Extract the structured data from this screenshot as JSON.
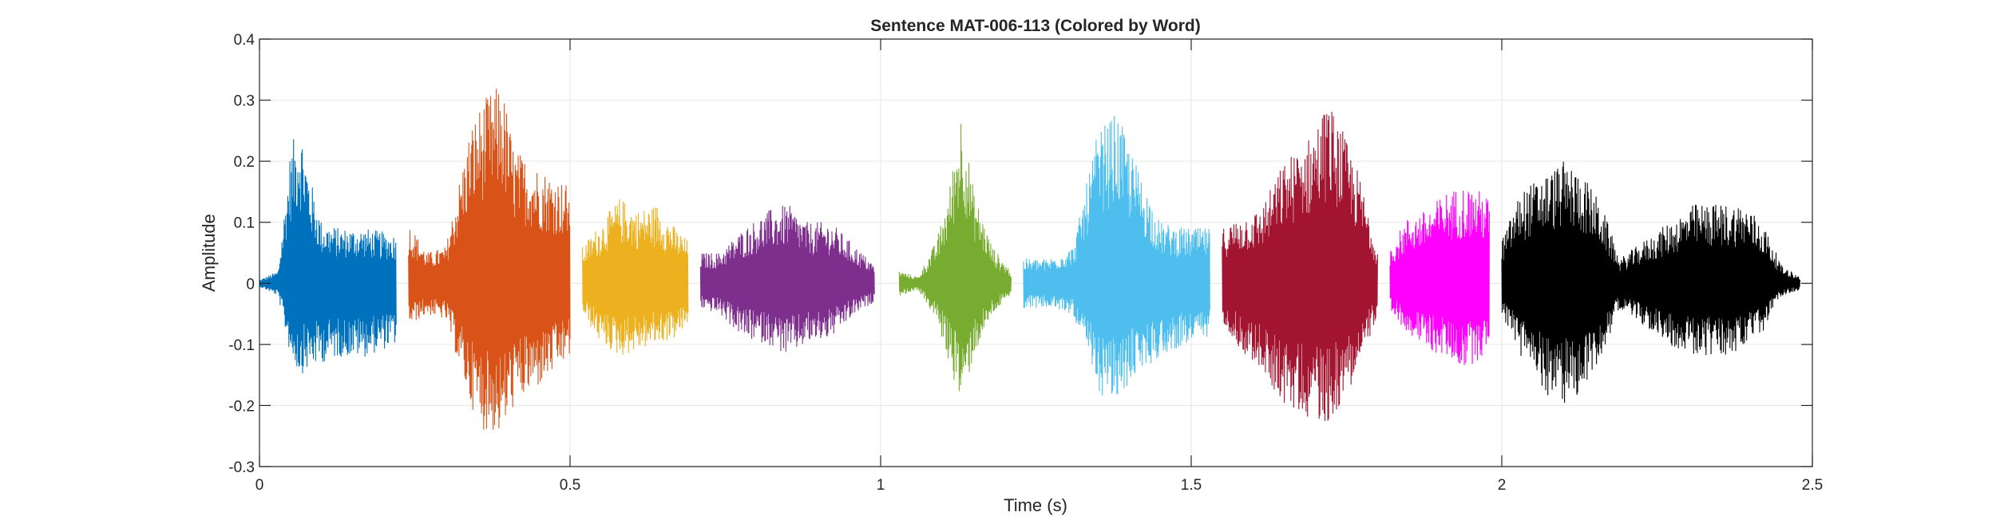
{
  "chart_data": {
    "type": "line",
    "title": "Sentence MAT-006-113 (Colored by Word)",
    "xlabel": "Time (s)",
    "ylabel": "Amplitude",
    "xlim": [
      0,
      2.5
    ],
    "ylim": [
      -0.3,
      0.4
    ],
    "xticks": [
      0,
      0.5,
      1,
      1.5,
      2,
      2.5
    ],
    "xtick_labels": [
      "0",
      "0.5",
      "1",
      "1.5",
      "2",
      "2.5"
    ],
    "yticks": [
      -0.3,
      -0.2,
      -0.1,
      0,
      0.1,
      0.2,
      0.3,
      0.4
    ],
    "ytick_labels": [
      "-0.3",
      "-0.2",
      "-0.1",
      "0",
      "0.1",
      "0.2",
      "0.3",
      "0.4"
    ],
    "grid": true,
    "series": [
      {
        "color": "#0072BD",
        "start": 0.0,
        "end": 0.22,
        "envelope": {
          "t": [
            0.0,
            0.03,
            0.05,
            0.065,
            0.08,
            0.1,
            0.13,
            0.17,
            0.22
          ],
          "max": [
            0.005,
            0.02,
            0.22,
            0.27,
            0.18,
            0.1,
            0.09,
            0.09,
            0.08
          ],
          "min": [
            -0.005,
            -0.02,
            -0.12,
            -0.15,
            -0.14,
            -0.13,
            -0.12,
            -0.12,
            -0.1
          ]
        }
      },
      {
        "color": "#D95319",
        "start": 0.24,
        "end": 0.5,
        "envelope": {
          "t": [
            0.24,
            0.27,
            0.3,
            0.34,
            0.36,
            0.39,
            0.41,
            0.45,
            0.5
          ],
          "max": [
            0.1,
            0.05,
            0.06,
            0.26,
            0.3,
            0.33,
            0.22,
            0.19,
            0.16
          ],
          "min": [
            -0.07,
            -0.05,
            -0.06,
            -0.2,
            -0.24,
            -0.25,
            -0.2,
            -0.17,
            -0.12
          ]
        }
      },
      {
        "color": "#EDB120",
        "start": 0.52,
        "end": 0.69,
        "envelope": {
          "t": [
            0.52,
            0.55,
            0.58,
            0.61,
            0.64,
            0.67,
            0.69
          ],
          "max": [
            0.06,
            0.1,
            0.14,
            0.12,
            0.13,
            0.09,
            0.07
          ],
          "min": [
            -0.05,
            -0.1,
            -0.12,
            -0.11,
            -0.1,
            -0.09,
            -0.07
          ]
        }
      },
      {
        "color": "#7E2F8E",
        "start": 0.71,
        "end": 0.99,
        "envelope": {
          "t": [
            0.71,
            0.74,
            0.78,
            0.82,
            0.85,
            0.88,
            0.92,
            0.96,
            0.99
          ],
          "max": [
            0.05,
            0.05,
            0.09,
            0.12,
            0.13,
            0.1,
            0.1,
            0.06,
            0.03
          ],
          "min": [
            -0.04,
            -0.05,
            -0.09,
            -0.1,
            -0.12,
            -0.1,
            -0.09,
            -0.05,
            -0.03
          ]
        }
      },
      {
        "color": "#77AC30",
        "start": 1.03,
        "end": 1.21,
        "envelope": {
          "t": [
            1.03,
            1.06,
            1.09,
            1.11,
            1.13,
            1.15,
            1.18,
            1.21
          ],
          "max": [
            0.02,
            0.01,
            0.07,
            0.15,
            0.29,
            0.15,
            0.06,
            0.02
          ],
          "min": [
            -0.02,
            -0.01,
            -0.06,
            -0.13,
            -0.2,
            -0.12,
            -0.05,
            -0.02
          ]
        }
      },
      {
        "color": "#4DBEEE",
        "start": 1.23,
        "end": 1.53,
        "envelope": {
          "t": [
            1.23,
            1.27,
            1.31,
            1.35,
            1.38,
            1.41,
            1.45,
            1.49,
            1.53
          ],
          "max": [
            0.04,
            0.04,
            0.06,
            0.25,
            0.28,
            0.2,
            0.1,
            0.09,
            0.09
          ],
          "min": [
            -0.04,
            -0.04,
            -0.05,
            -0.18,
            -0.2,
            -0.15,
            -0.12,
            -0.1,
            -0.09
          ]
        }
      },
      {
        "color": "#A2142F",
        "start": 1.55,
        "end": 1.8,
        "envelope": {
          "t": [
            1.55,
            1.58,
            1.61,
            1.65,
            1.69,
            1.72,
            1.74,
            1.77,
            1.8
          ],
          "max": [
            0.09,
            0.11,
            0.12,
            0.2,
            0.24,
            0.3,
            0.26,
            0.18,
            0.06
          ],
          "min": [
            -0.06,
            -0.11,
            -0.14,
            -0.2,
            -0.22,
            -0.23,
            -0.2,
            -0.14,
            -0.05
          ]
        }
      },
      {
        "color": "#FF00FF",
        "start": 1.82,
        "end": 1.98,
        "envelope": {
          "t": [
            1.82,
            1.85,
            1.88,
            1.91,
            1.94,
            1.97,
            1.98
          ],
          "max": [
            0.06,
            0.11,
            0.12,
            0.15,
            0.16,
            0.15,
            0.14
          ],
          "min": [
            -0.05,
            -0.08,
            -0.11,
            -0.12,
            -0.14,
            -0.12,
            -0.1
          ]
        }
      },
      {
        "color": "#000000",
        "start": 2.0,
        "end": 2.48,
        "envelope": {
          "t": [
            2.0,
            2.03,
            2.07,
            2.1,
            2.13,
            2.16,
            2.19,
            2.23,
            2.27,
            2.31,
            2.35,
            2.39,
            2.42,
            2.45,
            2.48
          ],
          "max": [
            0.07,
            0.15,
            0.18,
            0.2,
            0.18,
            0.13,
            0.04,
            0.07,
            0.1,
            0.13,
            0.13,
            0.13,
            0.1,
            0.03,
            0.01
          ],
          "min": [
            -0.05,
            -0.12,
            -0.18,
            -0.2,
            -0.18,
            -0.12,
            -0.04,
            -0.07,
            -0.1,
            -0.12,
            -0.12,
            -0.11,
            -0.08,
            -0.02,
            -0.01
          ]
        }
      }
    ]
  }
}
